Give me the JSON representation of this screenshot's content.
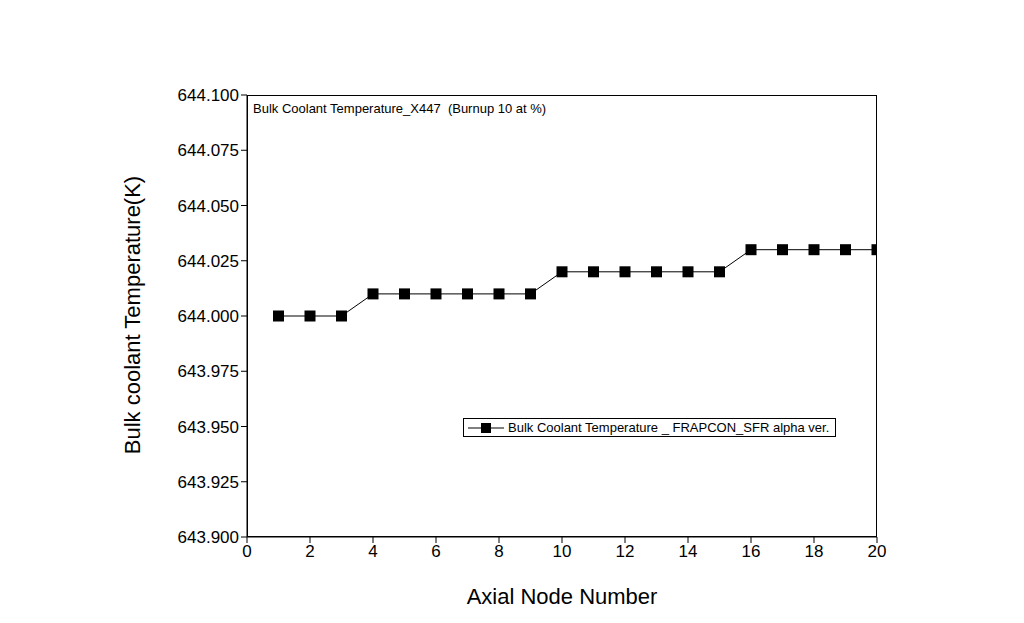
{
  "chart_data": {
    "type": "line",
    "title": "Bulk Coolant Temperature_X447  (Burnup 10 at %)",
    "x_label": "Axial Node Number",
    "y_label": "Bulk coolant Temperature(K)",
    "x": [
      1,
      2,
      3,
      4,
      5,
      6,
      7,
      8,
      9,
      10,
      11,
      12,
      13,
      14,
      15,
      16,
      17,
      18,
      19,
      20
    ],
    "series": [
      {
        "name": "Bulk Coolant Temperature _ FRAPCON_SFR alpha ver.",
        "color": "#000000",
        "marker": "square",
        "line_style": "solid",
        "values": [
          644.0,
          644.0,
          644.0,
          644.01,
          644.01,
          644.01,
          644.01,
          644.01,
          644.01,
          644.02,
          644.02,
          644.02,
          644.02,
          644.02,
          644.02,
          644.03,
          644.03,
          644.03,
          644.03,
          644.03
        ]
      }
    ],
    "xlim": [
      0,
      20
    ],
    "xticks": [
      0,
      2,
      4,
      6,
      8,
      10,
      12,
      14,
      16,
      18,
      20
    ],
    "ylim": [
      643.9,
      644.1
    ],
    "yticks": [
      {
        "value": 643.9,
        "label": "643.900"
      },
      643.925,
      {
        "value": 643.95,
        "label": "643.950"
      },
      643.975,
      {
        "value": 644.0,
        "label": "644.000"
      },
      644.025,
      {
        "value": 644.05,
        "label": "644.050"
      },
      644.075,
      {
        "value": 644.1,
        "label": "644.100"
      }
    ],
    "grid": false,
    "legend": "right"
  }
}
